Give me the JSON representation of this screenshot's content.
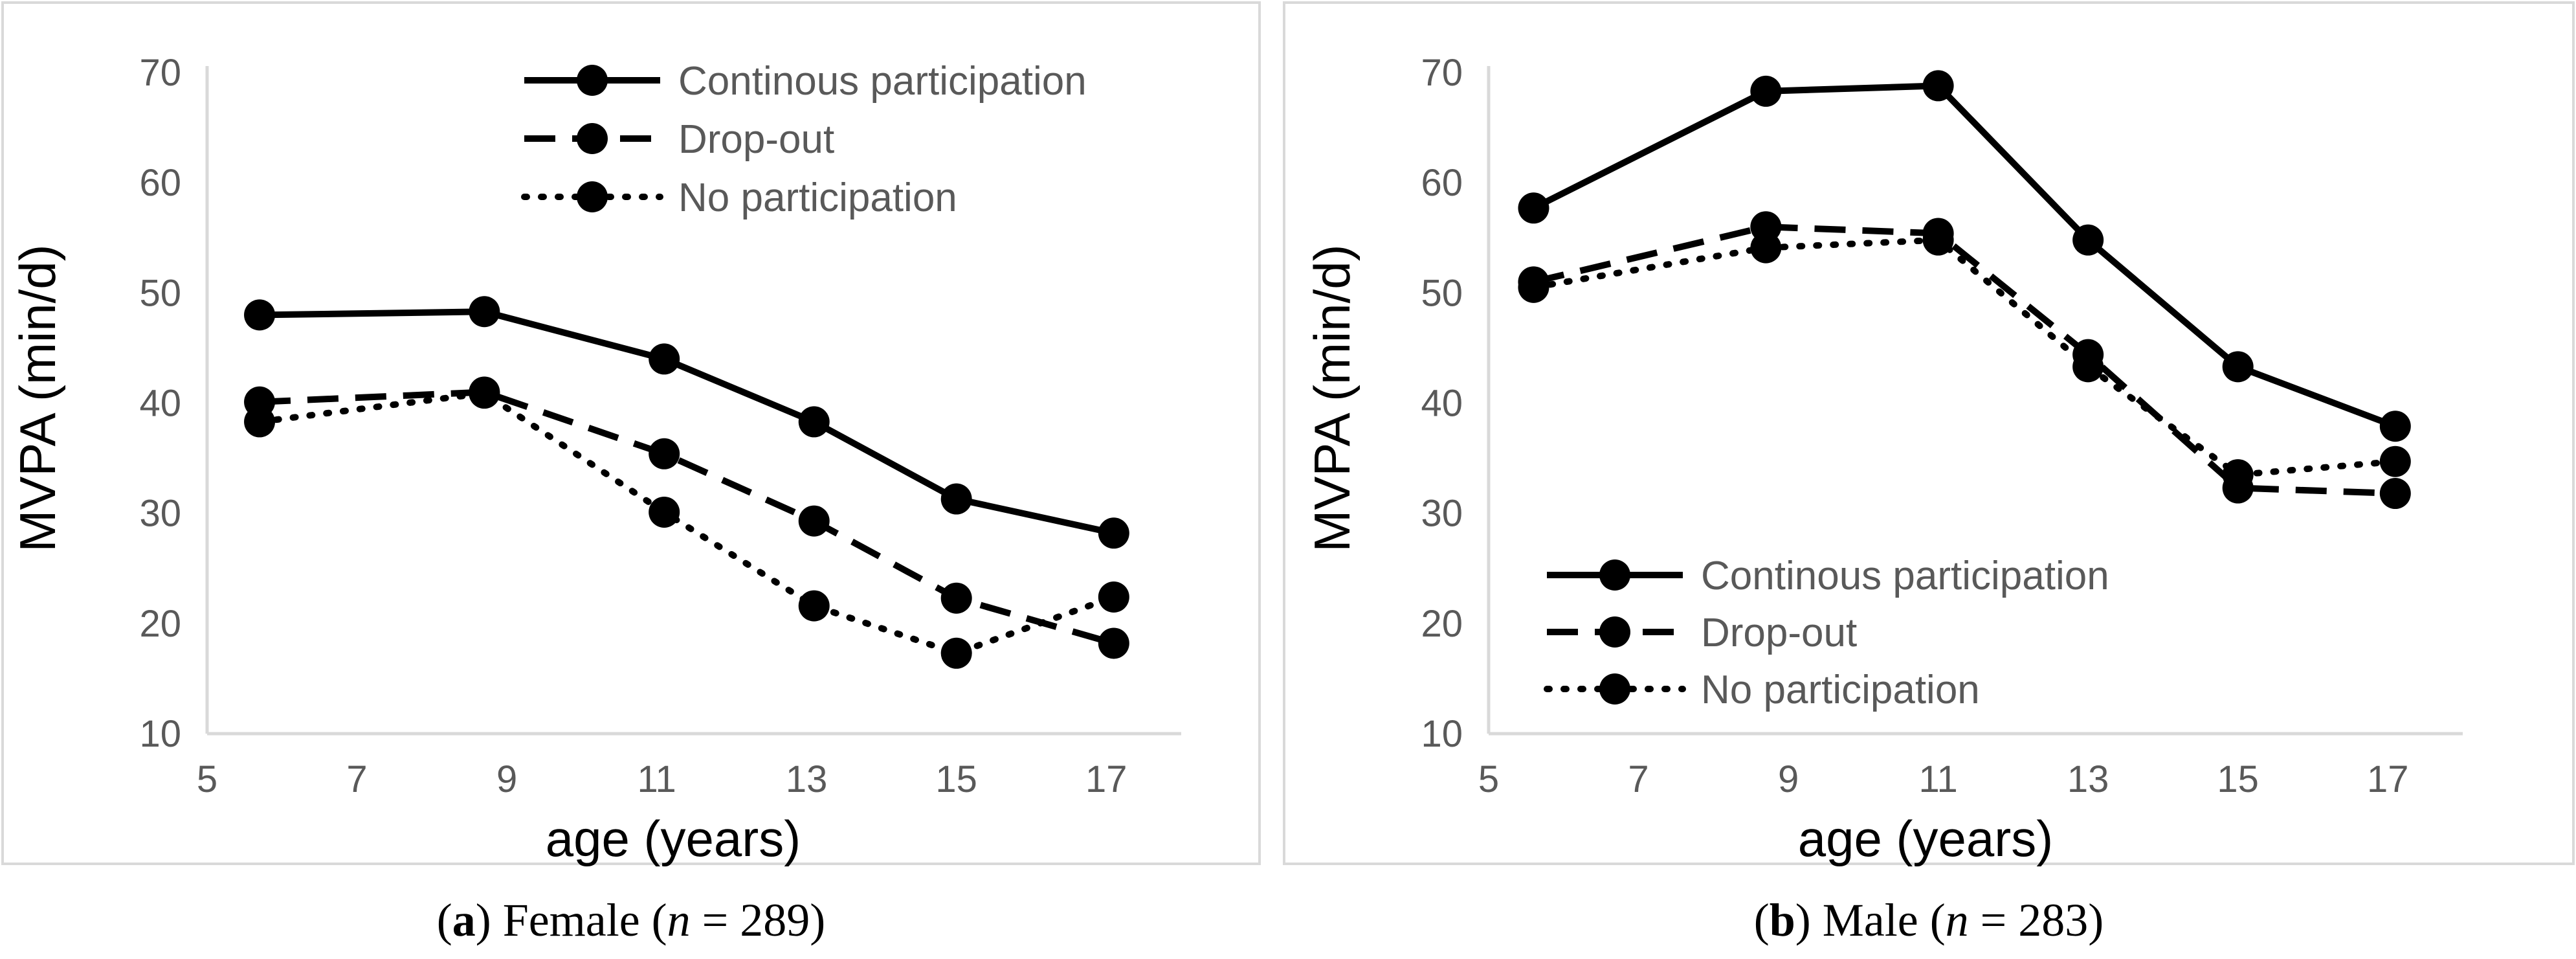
{
  "chart_data": [
    {
      "type": "line",
      "title": "",
      "xlabel": "age (years)",
      "ylabel": "MVPA (min/d)",
      "xlim": [
        5,
        18
      ],
      "ylim": [
        10,
        70
      ],
      "xticks": [
        5,
        7,
        9,
        11,
        13,
        15,
        17
      ],
      "yticks": [
        10,
        20,
        30,
        40,
        50,
        60,
        70
      ],
      "legend_position": "top-right",
      "caption": {
        "label": "a",
        "open": "(",
        "close": ")",
        "text": " Female (",
        "n": "n",
        "eq": " = 289)"
      },
      "series": [
        {
          "name": "Continous participation",
          "style": "solid",
          "x": [
            5.7,
            8.7,
            11.1,
            13.1,
            15.0,
            17.1
          ],
          "y": [
            48.0,
            48.3,
            44.0,
            38.3,
            31.3,
            28.2
          ]
        },
        {
          "name": "Drop-out",
          "style": "dashed",
          "x": [
            5.7,
            8.7,
            11.1,
            13.1,
            15.0,
            17.1
          ],
          "y": [
            40.1,
            41.0,
            35.4,
            29.3,
            22.3,
            18.2
          ]
        },
        {
          "name": "No participation",
          "style": "dotted",
          "x": [
            5.7,
            8.7,
            11.1,
            13.1,
            15.0,
            17.1
          ],
          "y": [
            38.3,
            40.9,
            30.1,
            21.6,
            17.3,
            22.4
          ]
        }
      ]
    },
    {
      "type": "line",
      "title": "",
      "xlabel": "age (years)",
      "ylabel": "MVPA (min/d)",
      "xlim": [
        5,
        18
      ],
      "ylim": [
        10,
        70
      ],
      "xticks": [
        5,
        7,
        9,
        11,
        13,
        15,
        17
      ],
      "yticks": [
        10,
        20,
        30,
        40,
        50,
        60,
        70
      ],
      "legend_position": "bottom-left",
      "caption": {
        "label": "b",
        "open": "(",
        "close": ")",
        "text": " Male (",
        "n": "n",
        "eq": " = 283)"
      },
      "series": [
        {
          "name": "Continous participation",
          "style": "solid",
          "x": [
            5.6,
            8.7,
            11.0,
            13.0,
            15.0,
            17.1
          ],
          "y": [
            57.7,
            68.3,
            68.8,
            54.8,
            43.3,
            37.9
          ]
        },
        {
          "name": "Drop-out",
          "style": "dashed",
          "x": [
            5.6,
            8.7,
            11.0,
            13.0,
            15.0,
            17.1
          ],
          "y": [
            51.0,
            56.0,
            55.4,
            44.4,
            32.3,
            31.8
          ]
        },
        {
          "name": "No participation",
          "style": "dotted",
          "x": [
            5.6,
            8.7,
            11.0,
            13.0,
            15.0,
            17.1
          ],
          "y": [
            50.5,
            54.1,
            54.8,
            43.3,
            33.5,
            34.7
          ]
        }
      ]
    }
  ]
}
